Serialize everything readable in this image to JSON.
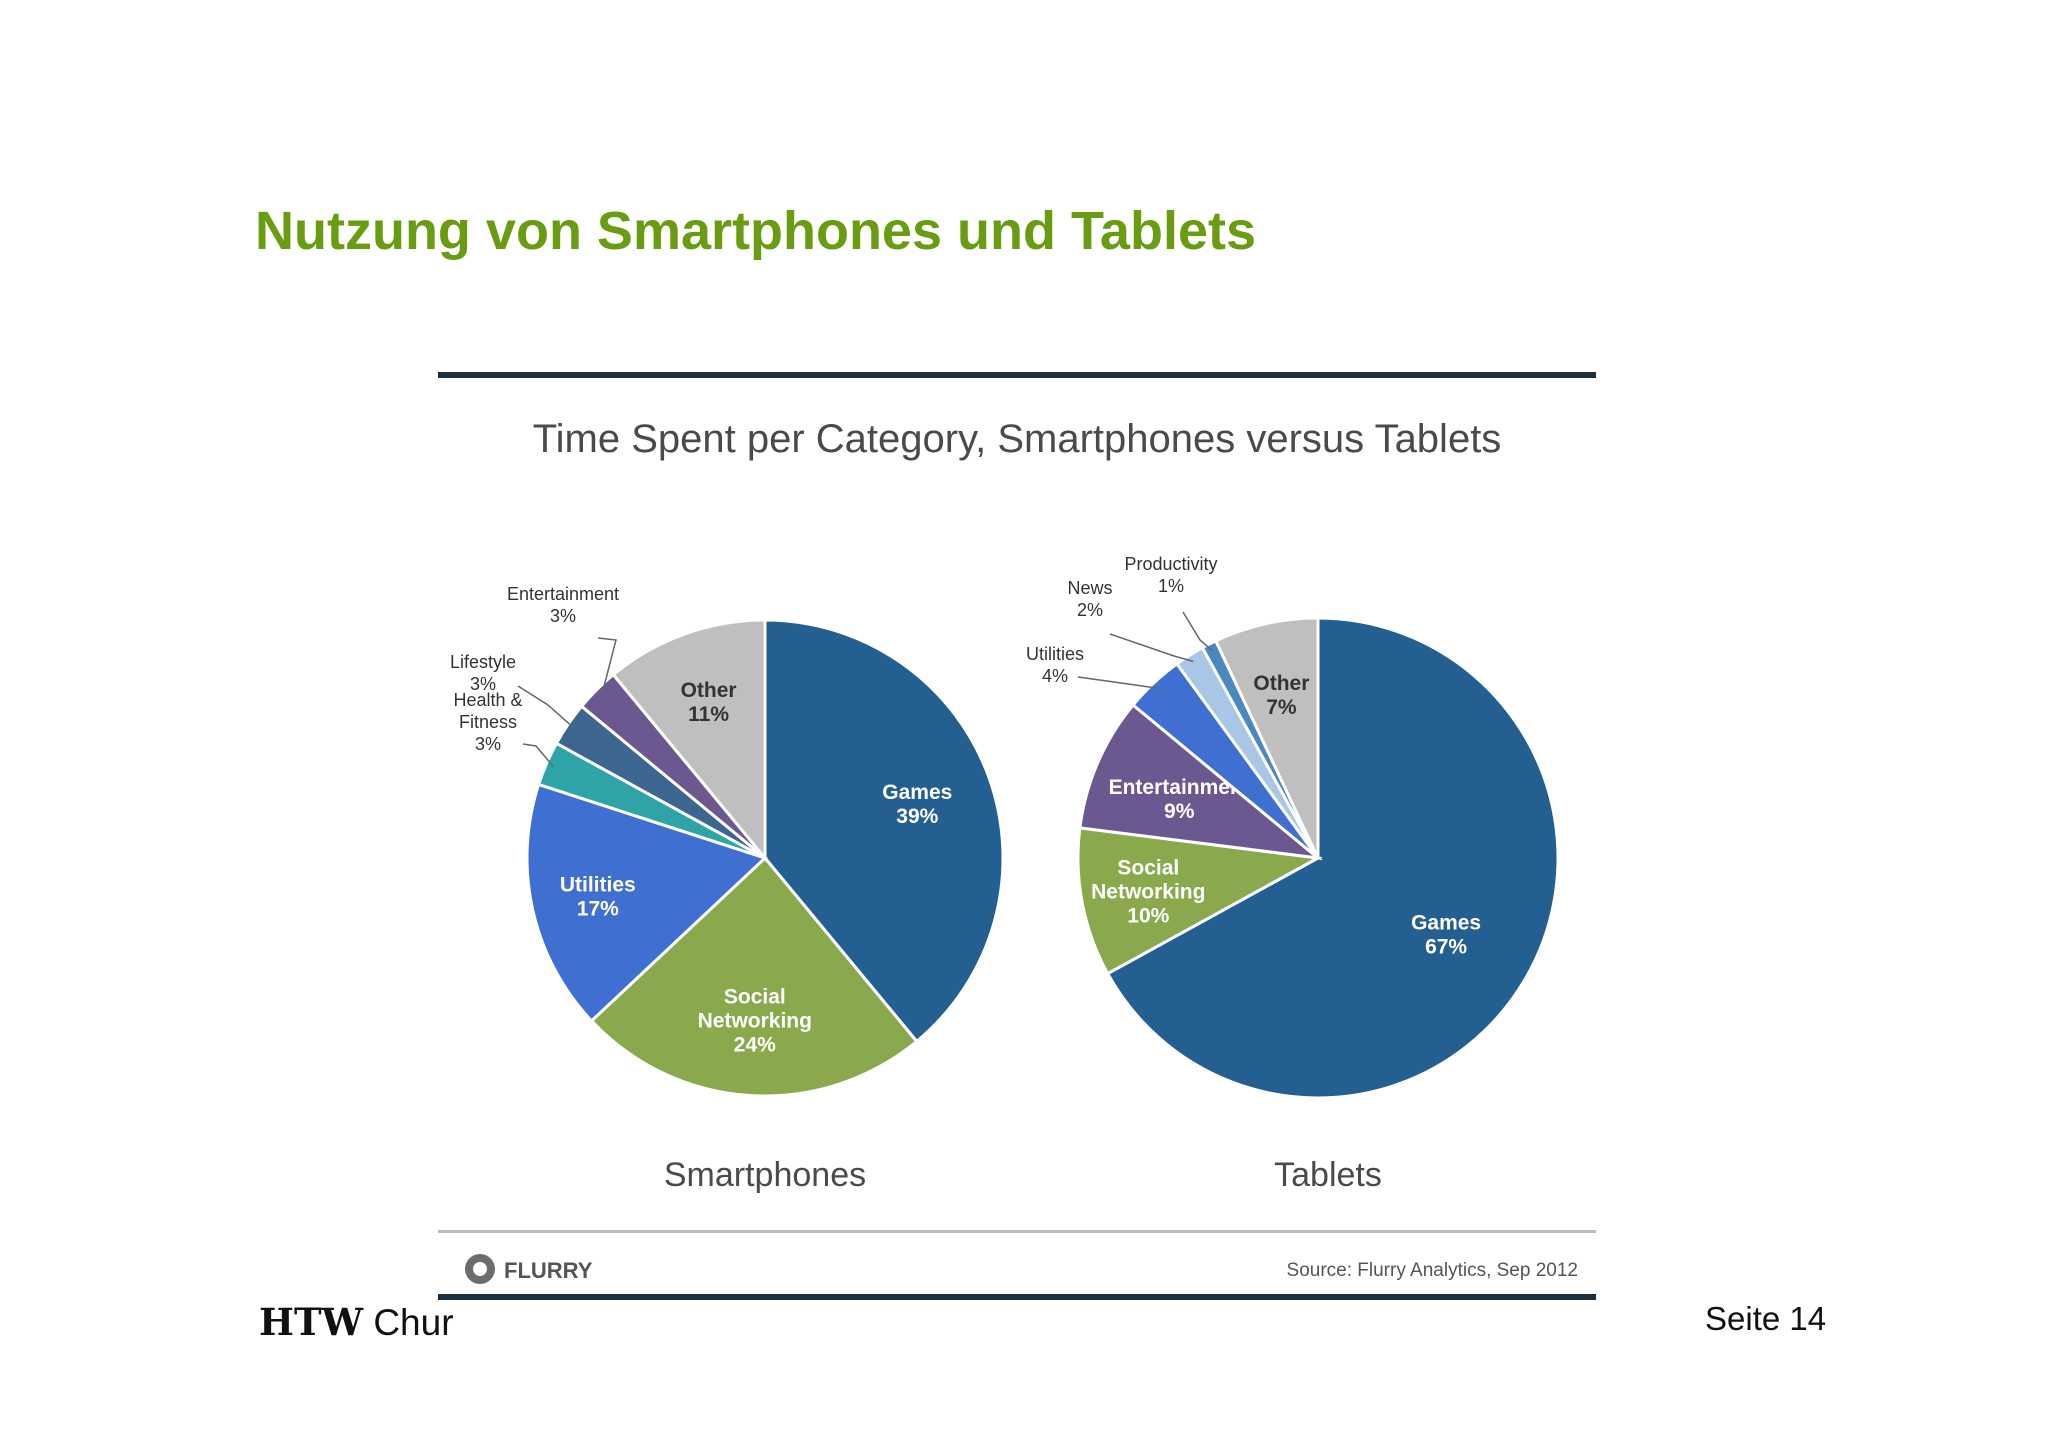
{
  "slide": {
    "title": "Nutzung von Smartphones und Tablets",
    "org_bold": "HTW",
    "org_light": "Chur",
    "page": "Seite 14"
  },
  "chart_data": {
    "type": "pie",
    "title": "Time Spent per Category, Smartphones versus Tablets",
    "source": "Source: Flurry Analytics, Sep 2012",
    "logo_text": "FLURRY",
    "pies": [
      {
        "name": "Smartphones",
        "slices": [
          {
            "label": "Games",
            "value": 39,
            "display": "39%",
            "color": "#245f91",
            "label_inside": true
          },
          {
            "label": "Social Networking",
            "value": 24,
            "display": "24%",
            "color": "#8aa84c",
            "label_inside": true
          },
          {
            "label": "Utilities",
            "value": 17,
            "display": "17%",
            "color": "#3f6fd0",
            "label_inside": true
          },
          {
            "label": "Health & Fitness",
            "value": 3,
            "display": "3%",
            "color": "#2ea3a8",
            "label_inside": false
          },
          {
            "label": "Lifestyle",
            "value": 3,
            "display": "3%",
            "color": "#3c6590",
            "label_inside": false
          },
          {
            "label": "Entertainment",
            "value": 3,
            "display": "3%",
            "color": "#6c5890",
            "label_inside": false
          },
          {
            "label": "Other",
            "value": 11,
            "display": "11%",
            "color": "#bfbfbf",
            "label_inside": true
          }
        ]
      },
      {
        "name": "Tablets",
        "slices": [
          {
            "label": "Games",
            "value": 67,
            "display": "67%",
            "color": "#245f91",
            "label_inside": true
          },
          {
            "label": "Social Networking",
            "value": 10,
            "display": "10%",
            "color": "#8aa84c",
            "label_inside": true
          },
          {
            "label": "Entertainment",
            "value": 9,
            "display": "9%",
            "color": "#6c5890",
            "label_inside": true
          },
          {
            "label": "Utilities",
            "value": 4,
            "display": "4%",
            "color": "#3f6fd0",
            "label_inside": false
          },
          {
            "label": "News",
            "value": 2,
            "display": "2%",
            "color": "#a9c6e6",
            "label_inside": false
          },
          {
            "label": "Productivity",
            "value": 1,
            "display": "1%",
            "color": "#4a88c0",
            "label_inside": false
          },
          {
            "label": "Other",
            "value": 7,
            "display": "7%",
            "color": "#bfbfbf",
            "label_inside": true
          }
        ]
      }
    ]
  }
}
